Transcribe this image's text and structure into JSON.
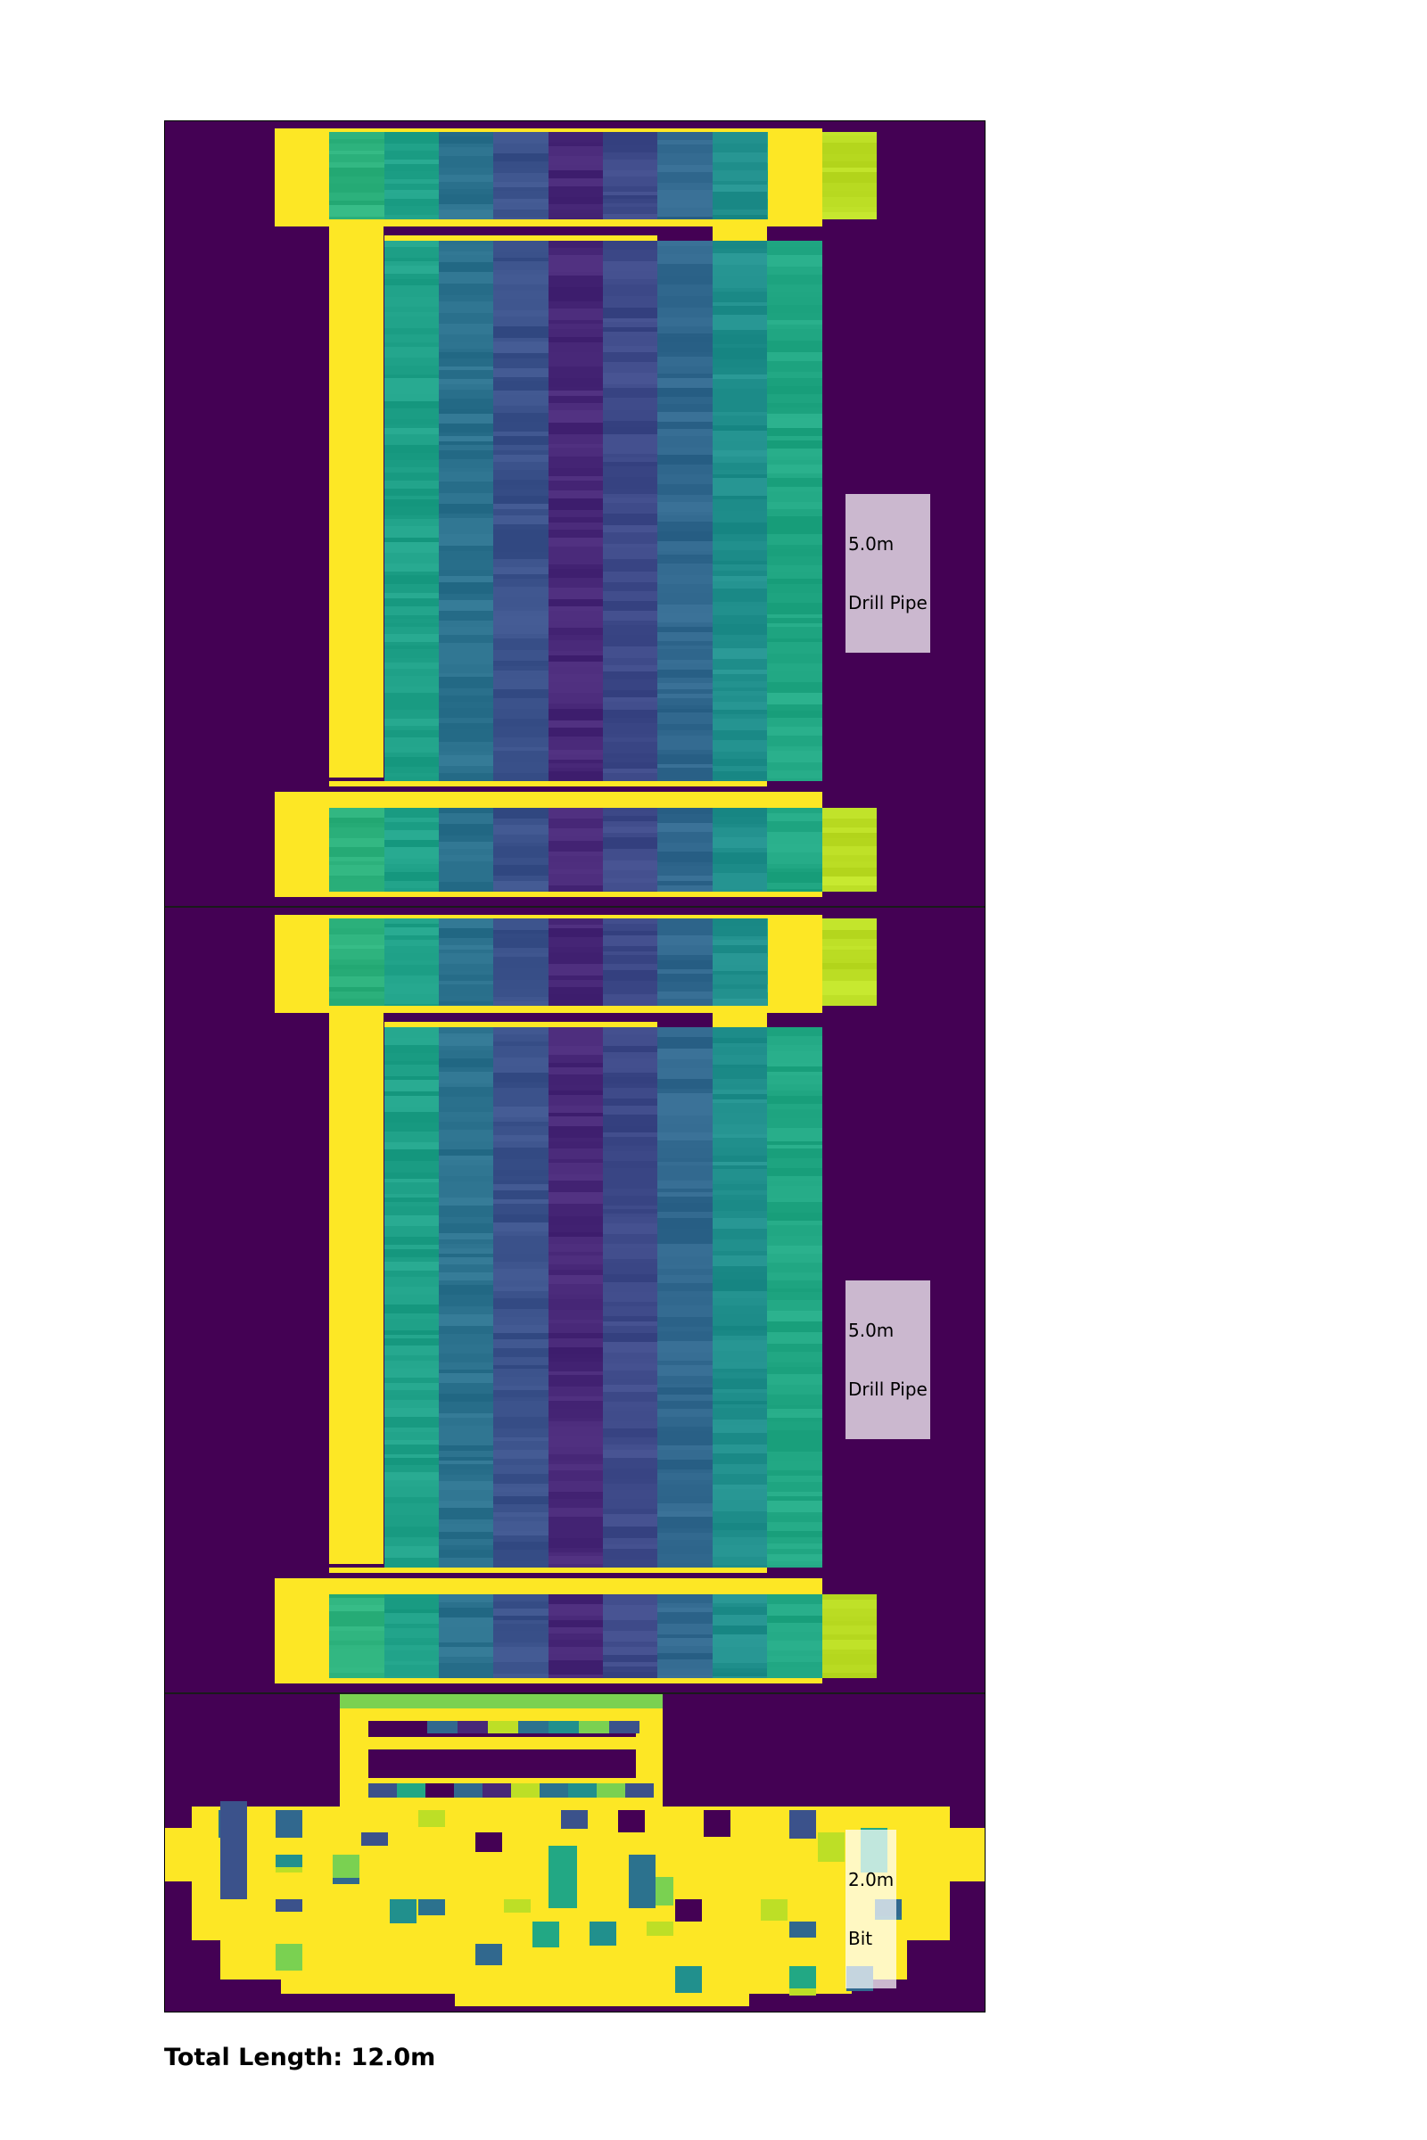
{
  "colors": {
    "background": "#440154",
    "steel": "#fde725",
    "divider": "#1a1a1a"
  },
  "sections": [
    {
      "component": "drill-pipe",
      "length_m": 5.0,
      "label_length": "5.0m",
      "label_name": "Drill Pipe",
      "column_colors": [
        "#2db27d",
        "#1fa188",
        "#2c728e",
        "#3b528b",
        "#482878",
        "#3e4a89",
        "#31688e",
        "#21908d",
        "#22a884",
        "#7ad151",
        "#bddf26"
      ]
    },
    {
      "component": "drill-pipe",
      "length_m": 5.0,
      "label_length": "5.0m",
      "label_name": "Drill Pipe",
      "column_colors": [
        "#2db27d",
        "#1fa188",
        "#2c728e",
        "#3b528b",
        "#482878",
        "#3e4a89",
        "#31688e",
        "#21908d",
        "#22a884",
        "#7ad151",
        "#bddf26"
      ]
    },
    {
      "component": "bit",
      "length_m": 2.0,
      "label_length": "2.0m",
      "label_name": "Bit",
      "column_colors": [
        "#3b528b",
        "#22a884",
        "#440154",
        "#31688e",
        "#482878",
        "#bddf26",
        "#2c728e",
        "#21908d",
        "#7ad151"
      ]
    }
  ],
  "footer": {
    "total_length": "Total Length: 12.0m"
  }
}
